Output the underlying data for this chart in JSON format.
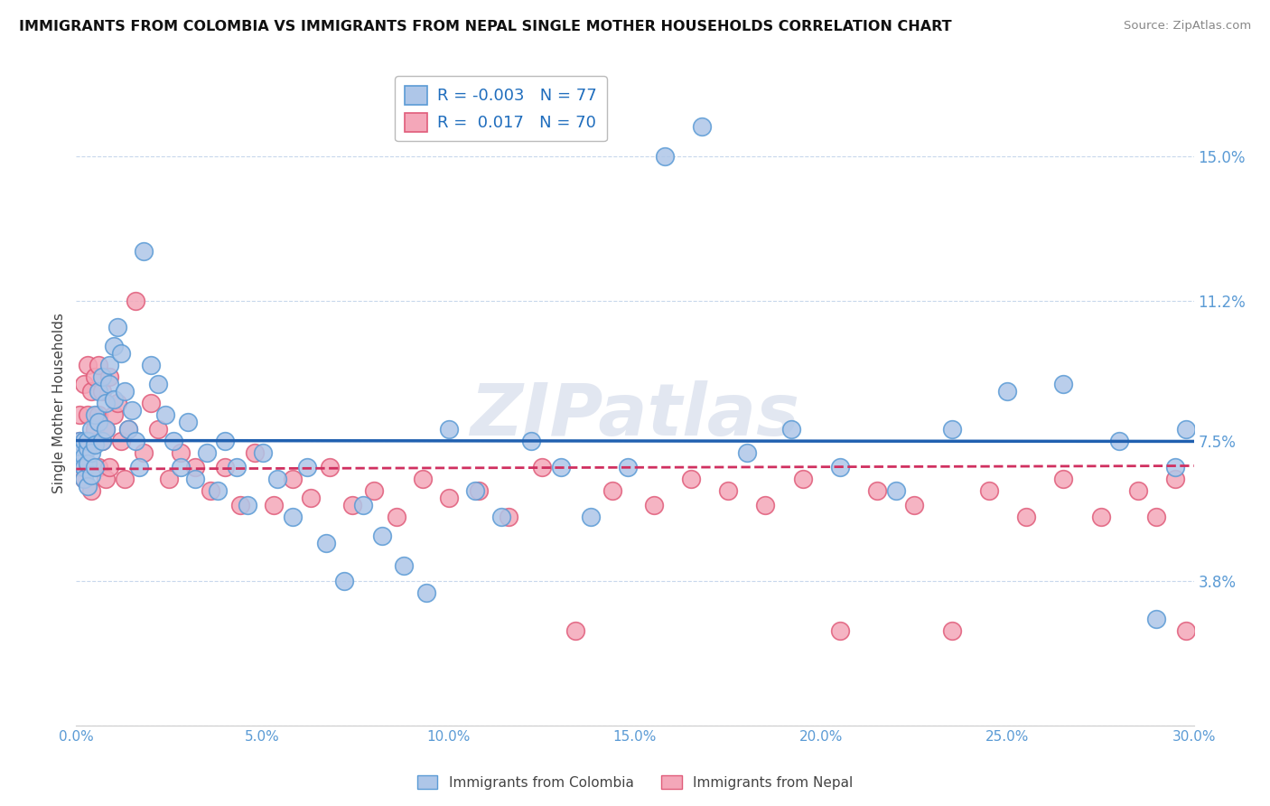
{
  "title": "IMMIGRANTS FROM COLOMBIA VS IMMIGRANTS FROM NEPAL SINGLE MOTHER HOUSEHOLDS CORRELATION CHART",
  "source": "Source: ZipAtlas.com",
  "ylabel": "Single Mother Households",
  "xmin": 0.0,
  "xmax": 0.3,
  "ymin": 0.0,
  "ymax": 0.17,
  "yticks": [
    0.0,
    0.038,
    0.075,
    0.112,
    0.15
  ],
  "ytick_labels": [
    "",
    "3.8%",
    "7.5%",
    "11.2%",
    "15.0%"
  ],
  "xticks": [
    0.0,
    0.05,
    0.1,
    0.15,
    0.2,
    0.25,
    0.3
  ],
  "xtick_labels": [
    "0.0%",
    "5.0%",
    "10.0%",
    "15.0%",
    "20.0%",
    "25.0%",
    "30.0%"
  ],
  "colombia_color": "#aec6e8",
  "colombia_edge": "#5b9bd5",
  "nepal_color": "#f4a7b9",
  "nepal_edge": "#e05c7a",
  "colombia_R": "-0.003",
  "colombia_N": "77",
  "nepal_R": "0.017",
  "nepal_N": "70",
  "colombia_line_color": "#2060b0",
  "nepal_line_color": "#d03060",
  "watermark": "ZIPatlas",
  "legend_label_colombia": "Immigrants from Colombia",
  "legend_label_nepal": "Immigrants from Nepal",
  "colombia_x": [
    0.001,
    0.001,
    0.001,
    0.002,
    0.002,
    0.002,
    0.002,
    0.003,
    0.003,
    0.003,
    0.003,
    0.004,
    0.004,
    0.004,
    0.005,
    0.005,
    0.005,
    0.006,
    0.006,
    0.007,
    0.007,
    0.008,
    0.008,
    0.009,
    0.009,
    0.01,
    0.01,
    0.011,
    0.012,
    0.013,
    0.014,
    0.015,
    0.016,
    0.017,
    0.018,
    0.02,
    0.022,
    0.024,
    0.026,
    0.028,
    0.03,
    0.032,
    0.035,
    0.038,
    0.04,
    0.043,
    0.046,
    0.05,
    0.054,
    0.058,
    0.062,
    0.067,
    0.072,
    0.077,
    0.082,
    0.088,
    0.094,
    0.1,
    0.107,
    0.114,
    0.122,
    0.13,
    0.138,
    0.148,
    0.158,
    0.168,
    0.18,
    0.192,
    0.205,
    0.22,
    0.235,
    0.25,
    0.265,
    0.28,
    0.29,
    0.295,
    0.298
  ],
  "colombia_y": [
    0.075,
    0.072,
    0.069,
    0.075,
    0.071,
    0.068,
    0.065,
    0.073,
    0.069,
    0.075,
    0.063,
    0.078,
    0.072,
    0.066,
    0.082,
    0.074,
    0.068,
    0.08,
    0.088,
    0.092,
    0.075,
    0.085,
    0.078,
    0.09,
    0.095,
    0.1,
    0.086,
    0.105,
    0.098,
    0.088,
    0.078,
    0.083,
    0.075,
    0.068,
    0.125,
    0.095,
    0.09,
    0.082,
    0.075,
    0.068,
    0.08,
    0.065,
    0.072,
    0.062,
    0.075,
    0.068,
    0.058,
    0.072,
    0.065,
    0.055,
    0.068,
    0.048,
    0.038,
    0.058,
    0.05,
    0.042,
    0.035,
    0.078,
    0.062,
    0.055,
    0.075,
    0.068,
    0.055,
    0.068,
    0.15,
    0.158,
    0.072,
    0.078,
    0.068,
    0.062,
    0.078,
    0.088,
    0.09,
    0.075,
    0.028,
    0.068,
    0.078
  ],
  "nepal_x": [
    0.001,
    0.001,
    0.001,
    0.002,
    0.002,
    0.002,
    0.003,
    0.003,
    0.003,
    0.004,
    0.004,
    0.004,
    0.005,
    0.005,
    0.006,
    0.006,
    0.006,
    0.007,
    0.007,
    0.008,
    0.008,
    0.009,
    0.009,
    0.01,
    0.011,
    0.012,
    0.013,
    0.014,
    0.016,
    0.018,
    0.02,
    0.022,
    0.025,
    0.028,
    0.032,
    0.036,
    0.04,
    0.044,
    0.048,
    0.053,
    0.058,
    0.063,
    0.068,
    0.074,
    0.08,
    0.086,
    0.093,
    0.1,
    0.108,
    0.116,
    0.125,
    0.134,
    0.144,
    0.155,
    0.165,
    0.175,
    0.185,
    0.195,
    0.205,
    0.215,
    0.225,
    0.235,
    0.245,
    0.255,
    0.265,
    0.275,
    0.285,
    0.29,
    0.295,
    0.298
  ],
  "nepal_y": [
    0.082,
    0.075,
    0.068,
    0.09,
    0.075,
    0.065,
    0.095,
    0.082,
    0.068,
    0.088,
    0.075,
    0.062,
    0.092,
    0.078,
    0.095,
    0.082,
    0.068,
    0.075,
    0.088,
    0.065,
    0.078,
    0.092,
    0.068,
    0.082,
    0.085,
    0.075,
    0.065,
    0.078,
    0.112,
    0.072,
    0.085,
    0.078,
    0.065,
    0.072,
    0.068,
    0.062,
    0.068,
    0.058,
    0.072,
    0.058,
    0.065,
    0.06,
    0.068,
    0.058,
    0.062,
    0.055,
    0.065,
    0.06,
    0.062,
    0.055,
    0.068,
    0.025,
    0.062,
    0.058,
    0.065,
    0.062,
    0.058,
    0.065,
    0.025,
    0.062,
    0.058,
    0.025,
    0.062,
    0.055,
    0.065,
    0.055,
    0.062,
    0.055,
    0.065,
    0.025
  ]
}
